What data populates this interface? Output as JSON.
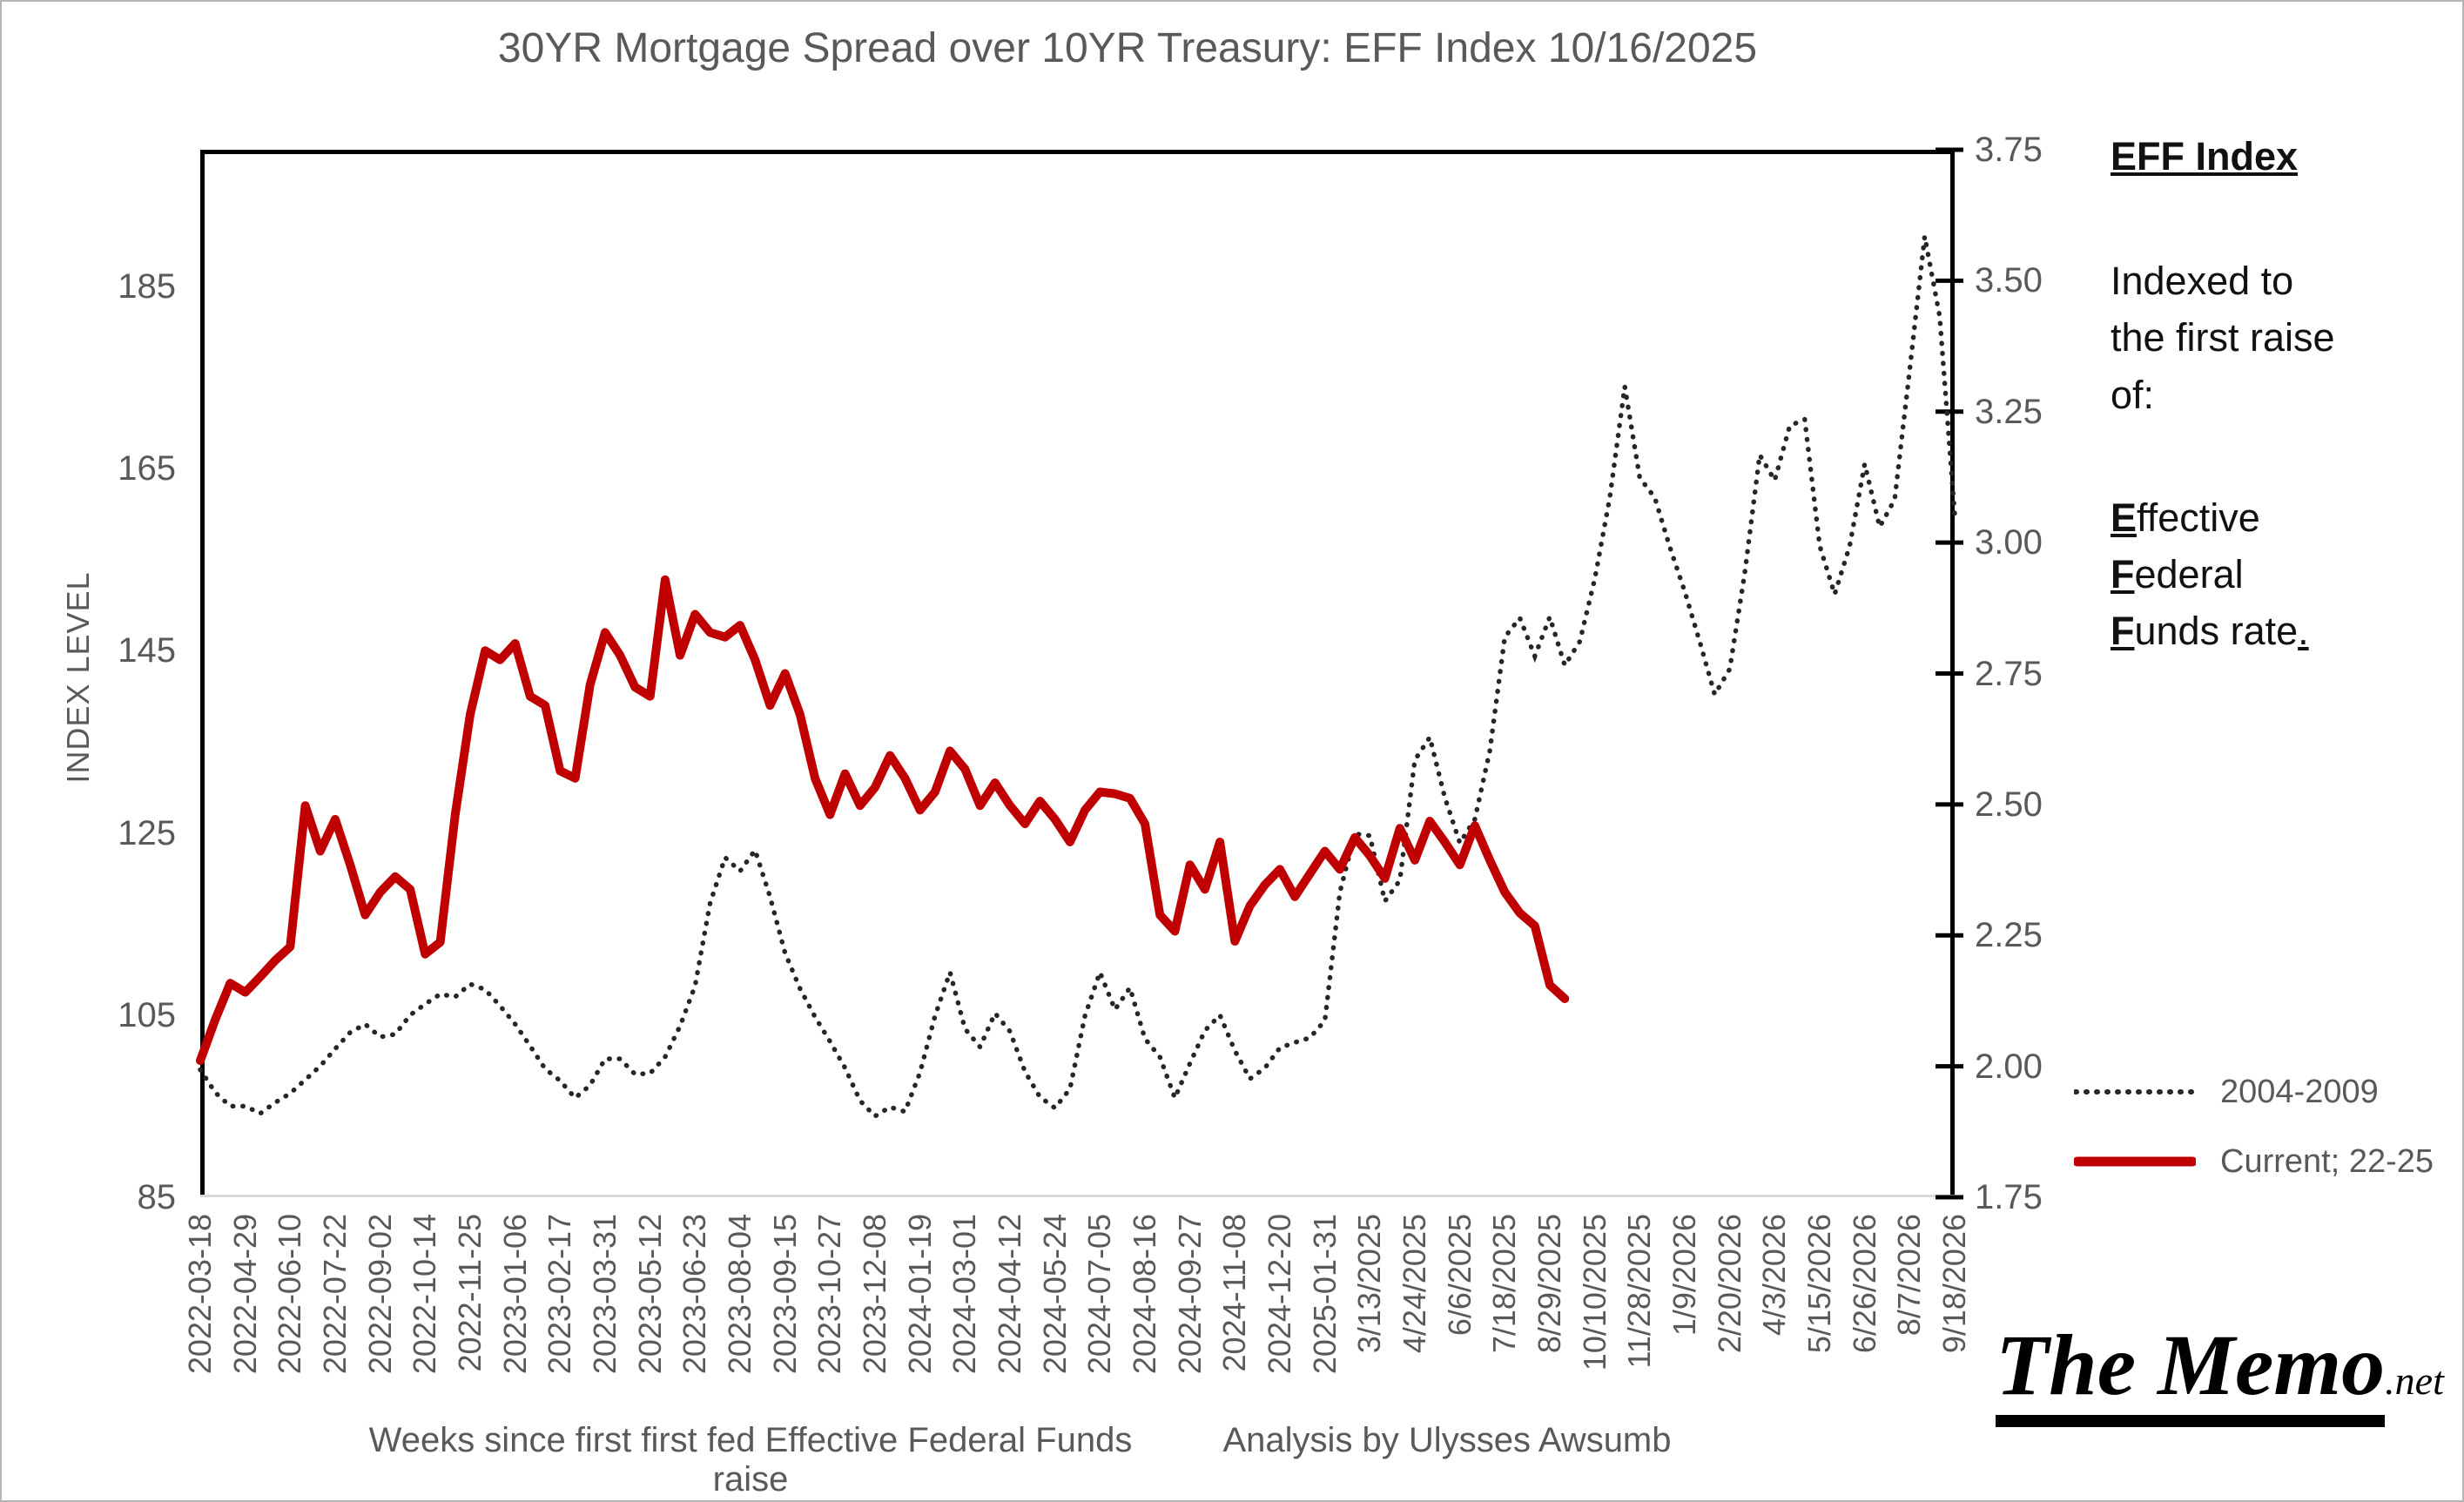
{
  "title": "30YR Mortgage Spread over 10YR Treasury: EFF Index 10/16/2025",
  "chart_data": {
    "type": "line",
    "title": "30YR Mortgage Spread over 10YR Treasury: EFF Index 10/16/2025",
    "xlabel": "",
    "ylabel_left": "INDEX LEVEL",
    "grid": false,
    "legend_position": "right",
    "x_tick_labels": [
      "2022-03-18",
      "2022-04-29",
      "2022-06-10",
      "2022-07-22",
      "2022-09-02",
      "2022-10-14",
      "2022-11-25",
      "2023-01-06",
      "2023-02-17",
      "2023-03-31",
      "2023-05-12",
      "2023-06-23",
      "2023-08-04",
      "2023-09-15",
      "2023-10-27",
      "2023-12-08",
      "2024-01-19",
      "2024-03-01",
      "2024-04-12",
      "2024-05-24",
      "2024-07-05",
      "2024-08-16",
      "2024-09-27",
      "2024-11-08",
      "2024-12-20",
      "2025-01-31",
      "3/13/2025",
      "4/24/2025",
      "6/6/2025",
      "7/18/2025",
      "8/29/2025",
      "10/10/2025",
      "11/28/2025",
      "1/9/2026",
      "2/20/2026",
      "4/3/2026",
      "5/15/2026",
      "6/26/2026",
      "8/7/2026",
      "9/18/2026"
    ],
    "x_weeks_per_tick": 6,
    "x_total_weeks": 234,
    "y_axis_left": {
      "tick_labels": [
        "85",
        "105",
        "125",
        "145",
        "165",
        "185"
      ],
      "tick_values": [
        85,
        105,
        125,
        145,
        165,
        185
      ],
      "plot_range": [
        85,
        200
      ]
    },
    "y_axis_right": {
      "tick_labels": [
        "1.75",
        "2.00",
        "2.25",
        "2.50",
        "2.75",
        "3.00",
        "3.25",
        "3.50",
        "3.75"
      ],
      "tick_values": [
        1.75,
        2.0,
        2.25,
        2.5,
        2.75,
        3.0,
        3.25,
        3.5,
        3.75
      ],
      "plot_range": [
        1.75,
        3.75
      ]
    },
    "series": [
      {
        "name": "2004-2009",
        "style": "dotted",
        "color": "#262626",
        "sample_interval_weeks": 2,
        "start_week": 0,
        "values": [
          99,
          96.5,
          95,
          95,
          94.2,
          95.4,
          96.4,
          97.9,
          99.4,
          101.3,
          103.1,
          104,
          102.6,
          102.9,
          105,
          106.2,
          107.3,
          107,
          108.4,
          107.8,
          106,
          104,
          101.6,
          99.1,
          97.8,
          95.9,
          97.3,
          100.2,
          100.2,
          98.5,
          98.6,
          100.4,
          103.8,
          108.2,
          117.3,
          122.3,
          120.8,
          123.1,
          118,
          111.8,
          107.9,
          104.8,
          102.1,
          99.2,
          95.6,
          93.9,
          94.9,
          94.4,
          98.7,
          104.9,
          109.7,
          103.5,
          101.5,
          105.2,
          103.2,
          98.8,
          96,
          94.8,
          96.9,
          104.9,
          109.7,
          105.6,
          108,
          102.4,
          100.4,
          95.9,
          99.7,
          103.3,
          105,
          101.1,
          98,
          99.2,
          101.4,
          102,
          102.5,
          104.4,
          118.5,
          124.9,
          124.7,
          117.5,
          119.8,
          133,
          135.5,
          128.9,
          123.9,
          126.5,
          134,
          146.5,
          148.6,
          144.4,
          148.7,
          143.4,
          146,
          152.9,
          161.8,
          174,
          164,
          161.8,
          156.4,
          151.5,
          146,
          140.2,
          143,
          153.5,
          166.5,
          163.7,
          169.7,
          170.4,
          156.5,
          151.2,
          156.5,
          165.5,
          158.6,
          161.6,
          175.8,
          190.5,
          181.7,
          160
        ]
      },
      {
        "name": "Current; 22-25",
        "style": "solid",
        "color": "#c00000",
        "sample_interval_weeks": 2,
        "start_week": 0,
        "values": [
          100,
          104.5,
          108.5,
          107.5,
          109.2,
          111,
          112.5,
          128,
          123,
          126.5,
          121.5,
          116,
          118.5,
          120.2,
          118.8,
          111.7,
          113,
          127,
          138,
          145,
          144,
          145.8,
          140,
          139,
          131.8,
          131,
          141.3,
          147,
          144.5,
          141,
          140,
          152.8,
          144.5,
          149,
          147,
          146.5,
          147.8,
          144,
          139,
          142.5,
          138,
          131,
          127,
          131.5,
          128,
          130,
          133.5,
          131,
          127.5,
          129.5,
          134,
          132,
          128,
          130.5,
          128,
          126,
          128.5,
          126.5,
          124,
          127.5,
          129.5,
          129.3,
          128.8,
          126,
          116,
          114.2,
          121.5,
          118.8,
          124,
          113.1,
          117,
          119.3,
          121,
          118,
          120.5,
          123,
          121,
          124.5,
          122.5,
          120,
          125.5,
          122,
          126.3,
          124,
          121.5,
          125.8,
          122,
          118.5,
          116.2,
          114.8,
          108.3,
          106.8
        ]
      }
    ]
  },
  "annotations": {
    "eff_heading": "EFF Index",
    "eff_body": "Indexed to\nthe first raise\nof:",
    "eff_terms": [
      {
        "lead": "E",
        "rest": "ffective"
      },
      {
        "lead": "F",
        "rest": "ederal"
      },
      {
        "lead": "F",
        "rest": "unds rate"
      }
    ],
    "eff_tail": "."
  },
  "legend": {
    "items": [
      {
        "label": "2004-2009"
      },
      {
        "label": "Current; 22-25"
      }
    ]
  },
  "footer": {
    "x_caption": "Weeks since first first fed Effective Federal Funds raise",
    "credit": "Analysis by Ulysses Awsumb"
  },
  "logo": {
    "main": "The Memo",
    "suffix": ".net"
  },
  "colors": {
    "accent_red": "#c00000",
    "dotted_series": "#262626",
    "text_gray": "#595959",
    "axis_black": "#000000",
    "axis_bottom_gray": "#d9d9d9"
  }
}
